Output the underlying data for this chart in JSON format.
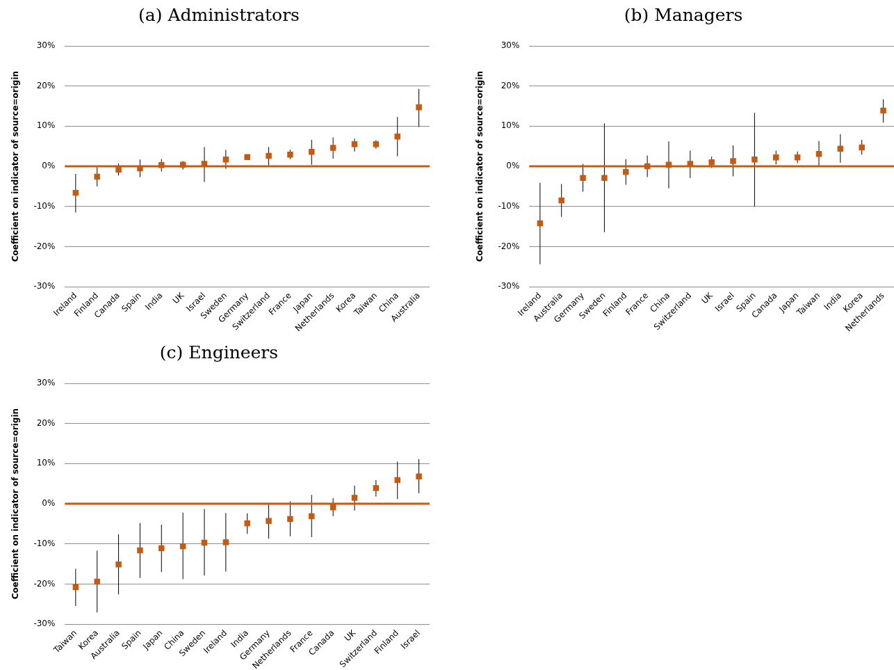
{
  "chart_data": [
    {
      "type": "scatter",
      "title": "(a) Administrators",
      "ylabel": "Coefficient on indicator of source=origin",
      "categories": [
        "Ireland",
        "Finland",
        "Canada",
        "Spain",
        "India",
        "UK",
        "Israel",
        "Sweden",
        "Germany",
        "Switzerland",
        "France",
        "Japan",
        "Netherlands",
        "Korea",
        "Taiwan",
        "China",
        "Australia"
      ],
      "marker": "square",
      "grid": "y",
      "ylim": [
        -30,
        30
      ],
      "yticks": [
        {
          "value": -30,
          "label": "-30%"
        },
        {
          "value": -20,
          "label": "-20%"
        },
        {
          "value": -10,
          "label": "-10%"
        },
        {
          "value": 0,
          "label": "0%"
        },
        {
          "value": 10,
          "label": "10%"
        },
        {
          "value": 20,
          "label": "20%"
        },
        {
          "value": 30,
          "label": "30%"
        }
      ],
      "ref_lines": [
        {
          "axis": "y",
          "value": 0,
          "color": "#c55a11"
        }
      ],
      "series": [
        {
          "color": "#c55a11",
          "values": [
            -6.6,
            -2.6,
            -0.8,
            -0.5,
            0.3,
            0.4,
            0.6,
            1.7,
            2.3,
            2.6,
            2.9,
            3.6,
            4.6,
            5.5,
            5.5,
            7.4,
            14.7
          ],
          "errors": [
            [
              -11.5,
              -1.9
            ],
            [
              -5.0,
              -0.2
            ],
            [
              -2.3,
              0.7
            ],
            [
              -2.7,
              1.7
            ],
            [
              -1.3,
              1.8
            ],
            [
              -0.8,
              1.3
            ],
            [
              -3.9,
              4.8
            ],
            [
              -0.6,
              4.1
            ],
            null,
            [
              0.2,
              4.8
            ],
            [
              1.8,
              4.1
            ],
            [
              0.4,
              6.6
            ],
            [
              1.9,
              7.2
            ],
            [
              3.7,
              6.9
            ],
            [
              4.4,
              6.5
            ],
            [
              2.5,
              12.3
            ],
            [
              9.8,
              19.3
            ]
          ]
        }
      ]
    },
    {
      "type": "scatter",
      "title": "(b) Managers",
      "ylabel": "Coefficient on indicator of source=origin",
      "categories": [
        "Ireland",
        "Australia",
        "Germany",
        "Sweden",
        "Finland",
        "France",
        "China",
        "Switzerland",
        "UK",
        "Israel",
        "Spain",
        "Canada",
        "Japan",
        "Taiwan",
        "India",
        "Korea",
        "Netherlands"
      ],
      "marker": "square",
      "grid": "y",
      "ylim": [
        -30,
        30
      ],
      "yticks": [
        {
          "value": -30,
          "label": "-30%"
        },
        {
          "value": -20,
          "label": "-20%"
        },
        {
          "value": -10,
          "label": "-10%"
        },
        {
          "value": 0,
          "label": "0%"
        },
        {
          "value": 10,
          "label": "10%"
        },
        {
          "value": 20,
          "label": "20%"
        },
        {
          "value": 30,
          "label": "30%"
        }
      ],
      "ref_lines": [
        {
          "axis": "y",
          "value": 0,
          "color": "#c55a11"
        }
      ],
      "series": [
        {
          "color": "#c55a11",
          "values": [
            -14.2,
            -8.5,
            -2.9,
            -2.9,
            -1.4,
            0,
            0.4,
            0.6,
            1.0,
            1.3,
            1.7,
            2.2,
            2.2,
            3.1,
            4.4,
            4.7,
            13.9
          ],
          "errors": [
            [
              -24.4,
              -4.1
            ],
            [
              -12.6,
              -4.4
            ],
            [
              -6.3,
              0.6
            ],
            [
              -16.4,
              10.7
            ],
            [
              -4.6,
              1.8
            ],
            [
              -2.7,
              2.7
            ],
            [
              -5.5,
              6.2
            ],
            [
              -2.9,
              3.9
            ],
            [
              -0.4,
              2.4
            ],
            [
              -2.5,
              5.2
            ],
            [
              -10.0,
              13.3
            ],
            [
              0.5,
              3.9
            ],
            [
              0.8,
              3.7
            ],
            [
              0,
              6.3
            ],
            [
              0.9,
              8.0
            ],
            [
              2.9,
              6.6
            ],
            [
              10.9,
              16.7
            ]
          ]
        }
      ]
    },
    {
      "type": "scatter",
      "title": "(c) Engineers",
      "ylabel": "Coefficient on indicator of source=origin",
      "categories": [
        "Taiwan",
        "Korea",
        "Australia",
        "Spain",
        "Japan",
        "China",
        "Sweden",
        "Ireland",
        "India",
        "Germany",
        "Netherlands",
        "France",
        "Canada",
        "UK",
        "Switzerland",
        "Finland",
        "Israel"
      ],
      "marker": "square",
      "grid": "y",
      "ylim": [
        -30,
        30
      ],
      "yticks": [
        {
          "value": -30,
          "label": "-30%"
        },
        {
          "value": -20,
          "label": "-20%"
        },
        {
          "value": -10,
          "label": "-10%"
        },
        {
          "value": 0,
          "label": "0%"
        },
        {
          "value": 10,
          "label": "10%"
        },
        {
          "value": 20,
          "label": "20%"
        },
        {
          "value": 30,
          "label": "30%"
        }
      ],
      "ref_lines": [
        {
          "axis": "y",
          "value": 0,
          "color": "#c55a11"
        }
      ],
      "series": [
        {
          "color": "#c55a11",
          "values": [
            -20.8,
            -19.4,
            -15.1,
            -11.6,
            -11.1,
            -10.6,
            -9.7,
            -9.6,
            -4.9,
            -4.3,
            -3.8,
            -3.1,
            -0.9,
            1.5,
            3.9,
            5.9,
            6.8
          ],
          "errors": [
            [
              -25.5,
              -16.2
            ],
            [
              -27.1,
              -11.7
            ],
            [
              -22.6,
              -7.6
            ],
            [
              -18.5,
              -4.8
            ],
            [
              -17.0,
              -5.2
            ],
            [
              -18.8,
              -2.2
            ],
            [
              -17.9,
              -1.3
            ],
            [
              -16.9,
              -2.3
            ],
            [
              -7.5,
              -2.4
            ],
            [
              -8.7,
              0.1
            ],
            [
              -8.1,
              0.6
            ],
            [
              -8.3,
              2.2
            ],
            [
              -3.1,
              1.4
            ],
            [
              -1.7,
              4.5
            ],
            [
              1.8,
              5.9
            ],
            [
              1.2,
              10.5
            ],
            [
              2.6,
              11.1
            ]
          ]
        }
      ]
    }
  ]
}
